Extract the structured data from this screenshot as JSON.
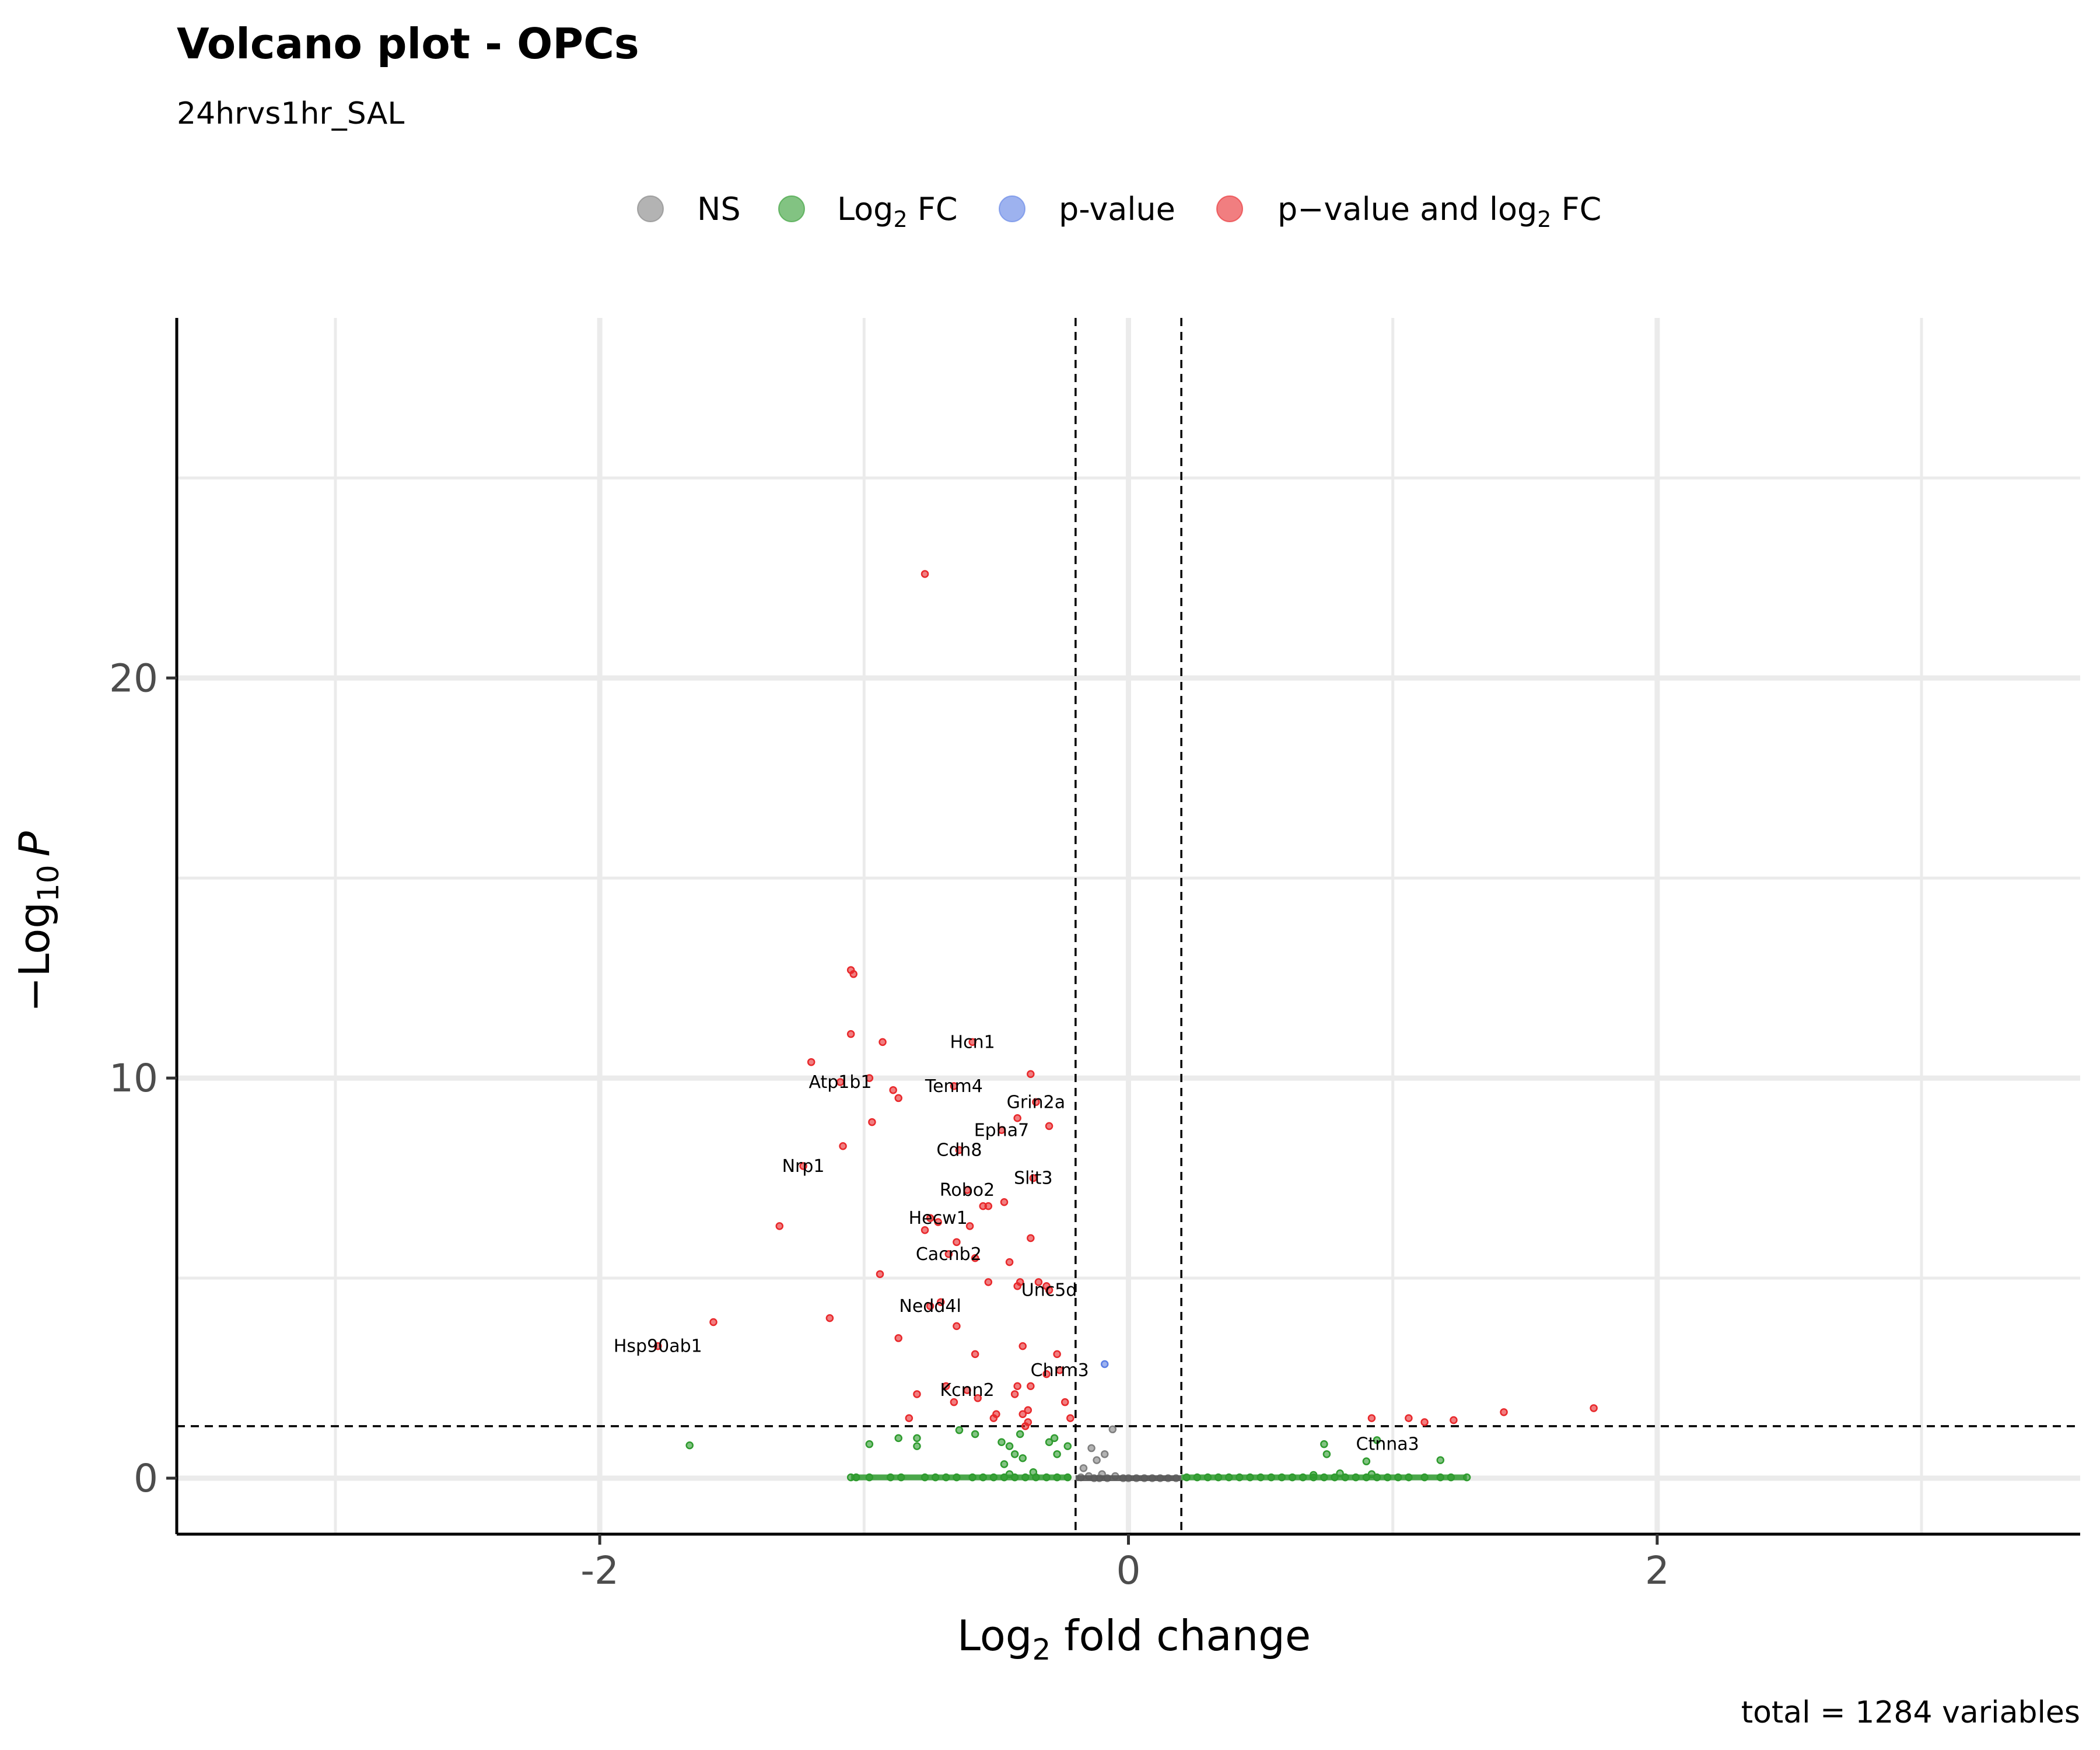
{
  "chart_data": {
    "type": "scatter",
    "title": "Volcano plot - OPCs",
    "subtitle": "24hrvs1hr_SAL",
    "xlabel_main": "Log",
    "xlabel_sub": "2",
    "xlabel_rest": " fold change",
    "ylabel_main": "−Log",
    "ylabel_sub": "10",
    "ylabel_p": "P",
    "caption": "total = 1284 variables",
    "xlim": [
      -3.6,
      3.6
    ],
    "ylim": [
      -1.4,
      29
    ],
    "x_ticks": [
      {
        "value": -2,
        "label": "-2"
      },
      {
        "value": 0,
        "label": "0"
      },
      {
        "value": 2,
        "label": "2"
      }
    ],
    "y_ticks": [
      {
        "value": 0,
        "label": "0"
      },
      {
        "value": 10,
        "label": "10"
      },
      {
        "value": 20,
        "label": "20"
      }
    ],
    "x_grid_major": [
      -2,
      0,
      2
    ],
    "x_grid_minor": [
      -3,
      -1,
      1,
      3
    ],
    "y_grid_major": [
      0,
      10,
      20
    ],
    "y_grid_minor": [
      5,
      15,
      25
    ],
    "fc_cutoff": 0.2,
    "p_cutoff_neglog10": 1.3,
    "colors": {
      "NS": "#808080",
      "Log2FC": "#2e9b2e",
      "pvalue": "#5b7ee5",
      "both": "#e8282b"
    },
    "legend": [
      {
        "key": "NS",
        "main": "NS",
        "sub": "",
        "rest": ""
      },
      {
        "key": "Log2FC",
        "main": "Log",
        "sub": "2",
        "rest": " FC"
      },
      {
        "key": "pvalue",
        "main": "p-value",
        "sub": "",
        "rest": ""
      },
      {
        "key": "both",
        "main": "p−value and log",
        "sub": "2",
        "rest": " FC"
      }
    ],
    "legend_position": "top",
    "series": [
      {
        "key": "both",
        "points": [
          [
            -0.77,
            22.6
          ],
          [
            -1.05,
            12.7
          ],
          [
            -1.04,
            12.6
          ],
          [
            -1.05,
            11.1
          ],
          [
            -0.93,
            10.9
          ],
          [
            -1.2,
            10.4
          ],
          [
            -0.59,
            10.9
          ],
          [
            -0.37,
            10.1
          ],
          [
            -1.09,
            9.9
          ],
          [
            -0.98,
            10.0
          ],
          [
            -0.89,
            9.7
          ],
          [
            -0.66,
            9.8
          ],
          [
            -0.87,
            9.5
          ],
          [
            -0.42,
            9.0
          ],
          [
            -0.35,
            9.4
          ],
          [
            -0.3,
            8.8
          ],
          [
            -0.97,
            8.9
          ],
          [
            -0.48,
            8.7
          ],
          [
            -1.08,
            8.3
          ],
          [
            -0.64,
            8.2
          ],
          [
            -1.23,
            7.8
          ],
          [
            -0.36,
            7.5
          ],
          [
            -0.61,
            7.2
          ],
          [
            -0.47,
            6.9
          ],
          [
            -0.55,
            6.8
          ],
          [
            -0.53,
            6.8
          ],
          [
            -1.32,
            6.3
          ],
          [
            -0.75,
            6.5
          ],
          [
            -0.72,
            6.4
          ],
          [
            -0.6,
            6.3
          ],
          [
            -0.77,
            6.2
          ],
          [
            -0.37,
            6.0
          ],
          [
            -0.65,
            5.9
          ],
          [
            -0.68,
            5.6
          ],
          [
            -0.58,
            5.5
          ],
          [
            -0.45,
            5.4
          ],
          [
            -0.94,
            5.1
          ],
          [
            -0.53,
            4.9
          ],
          [
            -0.42,
            4.8
          ],
          [
            -0.41,
            4.9
          ],
          [
            -0.34,
            4.9
          ],
          [
            -0.31,
            4.8
          ],
          [
            -0.3,
            4.7
          ],
          [
            -0.75,
            4.3
          ],
          [
            -0.71,
            4.4
          ],
          [
            -1.57,
            3.9
          ],
          [
            -1.13,
            4.0
          ],
          [
            -0.65,
            3.8
          ],
          [
            -0.87,
            3.5
          ],
          [
            -0.4,
            3.3
          ],
          [
            -1.78,
            3.3
          ],
          [
            -0.58,
            3.1
          ],
          [
            -0.27,
            3.1
          ],
          [
            -0.26,
            2.7
          ],
          [
            -0.31,
            2.6
          ],
          [
            -0.69,
            2.3
          ],
          [
            -0.61,
            2.2
          ],
          [
            -0.37,
            2.3
          ],
          [
            -0.42,
            2.3
          ],
          [
            -0.43,
            2.1
          ],
          [
            -0.57,
            2.0
          ],
          [
            -0.66,
            1.9
          ],
          [
            -0.8,
            2.1
          ],
          [
            -0.24,
            1.9
          ],
          [
            -0.38,
            1.7
          ],
          [
            -0.5,
            1.6
          ],
          [
            -0.51,
            1.5
          ],
          [
            -0.4,
            1.6
          ],
          [
            -0.22,
            1.5
          ],
          [
            -0.83,
            1.5
          ],
          [
            -0.38,
            1.4
          ],
          [
            -0.39,
            1.3
          ],
          [
            0.92,
            1.5
          ],
          [
            1.06,
            1.5
          ],
          [
            1.12,
            1.4
          ],
          [
            1.23,
            1.45
          ],
          [
            1.42,
            1.65
          ],
          [
            1.76,
            1.75
          ]
        ]
      },
      {
        "key": "pvalue",
        "points": [
          [
            -0.09,
            2.85
          ]
        ]
      },
      {
        "key": "NS",
        "points": [
          [
            -0.06,
            1.22
          ],
          [
            -0.09,
            0.6
          ],
          [
            -0.12,
            0.45
          ],
          [
            -0.14,
            0.75
          ],
          [
            -0.17,
            0.25
          ],
          [
            -0.1,
            0.1
          ],
          [
            -0.05,
            0.05
          ],
          [
            -0.15,
            0.05
          ],
          [
            -0.18,
            0.02
          ],
          [
            -0.02,
            0.0
          ],
          [
            0.0,
            0.0
          ],
          [
            0.03,
            0.0
          ],
          [
            0.06,
            0.0
          ],
          [
            0.09,
            0.0
          ],
          [
            0.12,
            0.0
          ],
          [
            0.15,
            0.0
          ],
          [
            0.18,
            0.0
          ],
          [
            -0.08,
            0.0
          ],
          [
            -0.11,
            0.0
          ],
          [
            -0.13,
            0.0
          ]
        ]
      },
      {
        "key": "Log2FC",
        "points": [
          [
            -1.66,
            0.82
          ],
          [
            -0.98,
            0.85
          ],
          [
            -1.05,
            0.02
          ],
          [
            -1.03,
            0.02
          ],
          [
            -0.98,
            0.02
          ],
          [
            -0.9,
            0.02
          ],
          [
            -0.86,
            0.02
          ],
          [
            -0.77,
            0.02
          ],
          [
            -0.73,
            0.02
          ],
          [
            -0.69,
            0.02
          ],
          [
            -0.65,
            0.02
          ],
          [
            -0.59,
            0.02
          ],
          [
            -0.55,
            0.02
          ],
          [
            -0.51,
            0.02
          ],
          [
            -0.47,
            0.02
          ],
          [
            -0.43,
            0.02
          ],
          [
            -0.39,
            0.02
          ],
          [
            -0.35,
            0.02
          ],
          [
            -0.31,
            0.02
          ],
          [
            -0.27,
            0.02
          ],
          [
            -0.23,
            0.02
          ],
          [
            -0.8,
            1.0
          ],
          [
            -0.8,
            0.8
          ],
          [
            -0.87,
            1.0
          ],
          [
            -0.64,
            1.2
          ],
          [
            -0.58,
            1.1
          ],
          [
            -0.48,
            0.9
          ],
          [
            -0.45,
            0.8
          ],
          [
            -0.43,
            0.6
          ],
          [
            -0.4,
            0.5
          ],
          [
            -0.47,
            0.35
          ],
          [
            -0.41,
            1.1
          ],
          [
            -0.3,
            0.9
          ],
          [
            -0.28,
            1.0
          ],
          [
            -0.27,
            0.6
          ],
          [
            -0.23,
            0.8
          ],
          [
            -0.36,
            0.15
          ],
          [
            -0.45,
            0.1
          ],
          [
            0.22,
            0.02
          ],
          [
            0.26,
            0.02
          ],
          [
            0.3,
            0.02
          ],
          [
            0.34,
            0.02
          ],
          [
            0.38,
            0.02
          ],
          [
            0.42,
            0.02
          ],
          [
            0.46,
            0.02
          ],
          [
            0.5,
            0.02
          ],
          [
            0.54,
            0.02
          ],
          [
            0.58,
            0.02
          ],
          [
            0.62,
            0.02
          ],
          [
            0.66,
            0.02
          ],
          [
            0.7,
            0.02
          ],
          [
            0.74,
            0.02
          ],
          [
            0.78,
            0.02
          ],
          [
            0.82,
            0.02
          ],
          [
            0.86,
            0.02
          ],
          [
            0.9,
            0.02
          ],
          [
            0.94,
            0.02
          ],
          [
            0.98,
            0.02
          ],
          [
            1.02,
            0.02
          ],
          [
            1.06,
            0.02
          ],
          [
            1.12,
            0.02
          ],
          [
            1.18,
            0.02
          ],
          [
            1.22,
            0.02
          ],
          [
            1.28,
            0.02
          ],
          [
            0.74,
            0.85
          ],
          [
            0.75,
            0.6
          ],
          [
            0.9,
            0.42
          ],
          [
            0.94,
            0.95
          ],
          [
            1.18,
            0.45
          ],
          [
            0.8,
            0.12
          ],
          [
            0.92,
            0.1
          ],
          [
            0.7,
            0.08
          ]
        ]
      }
    ],
    "labels": [
      {
        "text": "Hcn1",
        "x": -0.59,
        "y": 10.9
      },
      {
        "text": "Atp1b1",
        "x": -1.09,
        "y": 9.9
      },
      {
        "text": "Tenm4",
        "x": -0.66,
        "y": 9.8
      },
      {
        "text": "Grin2a",
        "x": -0.35,
        "y": 9.4
      },
      {
        "text": "Epha7",
        "x": -0.48,
        "y": 8.7
      },
      {
        "text": "Cdh8",
        "x": -0.64,
        "y": 8.2
      },
      {
        "text": "Nrp1",
        "x": -1.23,
        "y": 7.8
      },
      {
        "text": "Slit3",
        "x": -0.36,
        "y": 7.5
      },
      {
        "text": "Robo2",
        "x": -0.61,
        "y": 7.2
      },
      {
        "text": "Hecw1",
        "x": -0.72,
        "y": 6.5
      },
      {
        "text": "Cacnb2",
        "x": -0.68,
        "y": 5.6
      },
      {
        "text": "Unc5d",
        "x": -0.3,
        "y": 4.7
      },
      {
        "text": "Nedd4l",
        "x": -0.75,
        "y": 4.3
      },
      {
        "text": "Hsp90ab1",
        "x": -1.78,
        "y": 3.3
      },
      {
        "text": "Chrm3",
        "x": -0.26,
        "y": 2.7
      },
      {
        "text": "Kcnn2",
        "x": -0.61,
        "y": 2.2
      },
      {
        "text": "Ctnna3",
        "x": 0.98,
        "y": 0.85
      }
    ]
  }
}
